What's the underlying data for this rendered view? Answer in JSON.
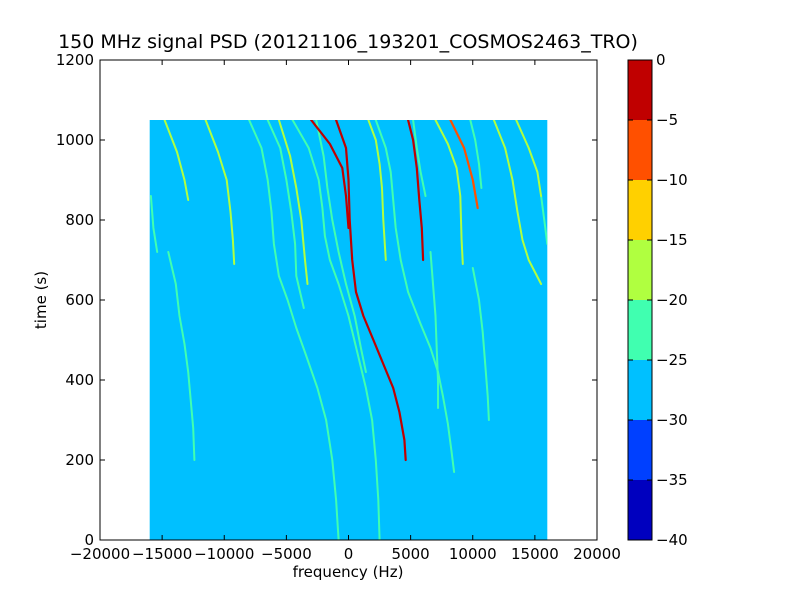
{
  "chart_data": {
    "type": "heatmap",
    "title": "150 MHz signal PSD (20121106_193201_COSMOS2463_TRO)",
    "xlabel": "frequency (Hz)",
    "ylabel": "time (s)",
    "xlim": [
      -20000,
      20000
    ],
    "ylim": [
      0,
      1200
    ],
    "x_ticks": [
      -20000,
      -15000,
      -10000,
      -5000,
      0,
      5000,
      10000,
      15000,
      20000
    ],
    "x_tick_labels": [
      "−20000",
      "−15000",
      "−10000",
      "−5000",
      "0",
      "5000",
      "10000",
      "15000",
      "20000"
    ],
    "y_ticks": [
      0,
      200,
      400,
      600,
      800,
      1000,
      1200
    ],
    "y_tick_labels": [
      "0",
      "200",
      "400",
      "600",
      "800",
      "1000",
      "1200"
    ],
    "data_extent": {
      "x": [
        -16000,
        16000
      ],
      "y": [
        0,
        1050
      ]
    },
    "background_level": -27.5,
    "colorbar": {
      "levels": [
        -40,
        -35,
        -30,
        -25,
        -20,
        -15,
        -10,
        -5,
        0
      ],
      "tick_labels": [
        "−40",
        "−35",
        "−30",
        "−25",
        "−20",
        "−15",
        "−10",
        "−5",
        "0"
      ],
      "colors": [
        "#0000bf",
        "#0040ff",
        "#00c0ff",
        "#40ffb0",
        "#b0ff40",
        "#ffd000",
        "#ff5000",
        "#c00000"
      ]
    },
    "tracks": [
      {
        "level": -2.5,
        "points": [
          [
            -1000,
            1050
          ],
          [
            -200,
            980
          ],
          [
            0,
            900
          ],
          [
            100,
            800
          ],
          [
            300,
            700
          ],
          [
            600,
            620
          ],
          [
            1200,
            560
          ],
          [
            2000,
            500
          ],
          [
            2800,
            440
          ],
          [
            3600,
            380
          ],
          [
            4100,
            320
          ],
          [
            4500,
            250
          ],
          [
            4600,
            200
          ]
        ]
      },
      {
        "level": -2.5,
        "points": [
          [
            -3000,
            1050
          ],
          [
            -1500,
            990
          ],
          [
            -500,
            930
          ],
          [
            -200,
            860
          ],
          [
            0,
            780
          ]
        ]
      },
      {
        "level": -2.5,
        "points": [
          [
            4800,
            1050
          ],
          [
            5200,
            1000
          ],
          [
            5500,
            930
          ],
          [
            5700,
            850
          ],
          [
            5900,
            780
          ],
          [
            6000,
            700
          ]
        ]
      },
      {
        "level": -7.5,
        "points": [
          [
            8200,
            1050
          ],
          [
            9300,
            980
          ],
          [
            10000,
            900
          ],
          [
            10400,
            830
          ]
        ]
      },
      {
        "level": -17.5,
        "points": [
          [
            1600,
            1050
          ],
          [
            2200,
            1000
          ],
          [
            2500,
            940
          ],
          [
            2700,
            880
          ],
          [
            2800,
            800
          ],
          [
            3000,
            700
          ]
        ]
      },
      {
        "level": -17.5,
        "points": [
          [
            7000,
            1050
          ],
          [
            8000,
            990
          ],
          [
            8700,
            930
          ],
          [
            9000,
            860
          ],
          [
            9100,
            750
          ],
          [
            9200,
            690
          ]
        ]
      },
      {
        "level": -17.5,
        "points": [
          [
            -11500,
            1050
          ],
          [
            -10500,
            970
          ],
          [
            -9800,
            900
          ],
          [
            -9500,
            820
          ],
          [
            -9300,
            750
          ],
          [
            -9200,
            690
          ]
        ]
      },
      {
        "level": -17.5,
        "points": [
          [
            -14800,
            1050
          ],
          [
            -13800,
            970
          ],
          [
            -13200,
            900
          ],
          [
            -12900,
            850
          ]
        ]
      },
      {
        "level": -17.5,
        "points": [
          [
            13500,
            1050
          ],
          [
            14500,
            980
          ],
          [
            15200,
            920
          ],
          [
            15500,
            860
          ]
        ]
      },
      {
        "level": -17.5,
        "points": [
          [
            -5600,
            1050
          ],
          [
            -4700,
            960
          ],
          [
            -4200,
            880
          ],
          [
            -3800,
            800
          ],
          [
            -3500,
            700
          ],
          [
            -3300,
            640
          ]
        ]
      },
      {
        "level": -17.5,
        "points": [
          [
            11700,
            1050
          ],
          [
            12600,
            980
          ],
          [
            13200,
            900
          ],
          [
            13600,
            820
          ],
          [
            14000,
            750
          ],
          [
            14500,
            700
          ],
          [
            15500,
            640
          ]
        ]
      },
      {
        "level": -22.5,
        "points": [
          [
            -8000,
            1050
          ],
          [
            -7000,
            980
          ],
          [
            -6500,
            900
          ],
          [
            -6200,
            820
          ],
          [
            -6000,
            740
          ],
          [
            -5600,
            660
          ],
          [
            -4900,
            600
          ],
          [
            -4200,
            530
          ],
          [
            -3400,
            460
          ],
          [
            -2500,
            380
          ],
          [
            -1800,
            300
          ],
          [
            -1300,
            200
          ],
          [
            -1000,
            100
          ],
          [
            -800,
            0
          ]
        ]
      },
      {
        "level": -22.5,
        "points": [
          [
            -4500,
            1050
          ],
          [
            -3200,
            980
          ],
          [
            -2400,
            900
          ],
          [
            -2100,
            830
          ],
          [
            -1900,
            760
          ],
          [
            -1500,
            700
          ],
          [
            -800,
            640
          ],
          [
            0,
            560
          ],
          [
            700,
            470
          ],
          [
            1400,
            380
          ],
          [
            1900,
            300
          ],
          [
            2200,
            200
          ],
          [
            2400,
            100
          ],
          [
            2500,
            0
          ]
        ]
      },
      {
        "level": -22.5,
        "points": [
          [
            -2600,
            1050
          ],
          [
            -2000,
            960
          ],
          [
            -1700,
            880
          ],
          [
            -1300,
            800
          ],
          [
            -800,
            720
          ],
          [
            -200,
            640
          ],
          [
            500,
            560
          ],
          [
            1000,
            480
          ],
          [
            1400,
            420
          ]
        ]
      },
      {
        "level": -22.5,
        "points": [
          [
            9800,
            1050
          ],
          [
            10200,
            1000
          ],
          [
            10500,
            940
          ],
          [
            10700,
            880
          ]
        ]
      },
      {
        "level": -22.5,
        "points": [
          [
            5200,
            1050
          ],
          [
            5500,
            980
          ],
          [
            5800,
            920
          ],
          [
            6200,
            860
          ]
        ]
      },
      {
        "level": -22.5,
        "points": [
          [
            -6500,
            1050
          ],
          [
            -5500,
            980
          ],
          [
            -5000,
            900
          ],
          [
            -4600,
            820
          ],
          [
            -4300,
            740
          ],
          [
            -4200,
            660
          ],
          [
            -3600,
            580
          ]
        ]
      },
      {
        "level": -22.5,
        "points": [
          [
            -15900,
            860
          ],
          [
            -15700,
            780
          ],
          [
            -15400,
            720
          ]
        ]
      },
      {
        "level": -22.5,
        "points": [
          [
            2200,
            1050
          ],
          [
            3000,
            980
          ],
          [
            3400,
            920
          ],
          [
            3600,
            850
          ],
          [
            3800,
            780
          ],
          [
            4200,
            700
          ],
          [
            4800,
            620
          ],
          [
            5800,
            540
          ],
          [
            6600,
            480
          ],
          [
            7200,
            420
          ],
          [
            7600,
            360
          ],
          [
            8000,
            290
          ],
          [
            8300,
            220
          ],
          [
            8500,
            170
          ]
        ]
      },
      {
        "level": -22.5,
        "points": [
          [
            15500,
            860
          ],
          [
            15800,
            790
          ],
          [
            16000,
            740
          ]
        ]
      },
      {
        "level": -22.5,
        "points": [
          [
            -14500,
            720
          ],
          [
            -13900,
            640
          ],
          [
            -13600,
            560
          ],
          [
            -13200,
            490
          ],
          [
            -12900,
            420
          ],
          [
            -12700,
            350
          ],
          [
            -12500,
            280
          ],
          [
            -12400,
            200
          ]
        ]
      },
      {
        "level": -22.5,
        "points": [
          [
            10000,
            680
          ],
          [
            10500,
            600
          ],
          [
            10800,
            520
          ],
          [
            11000,
            440
          ],
          [
            11200,
            360
          ],
          [
            11300,
            300
          ]
        ]
      },
      {
        "level": -22.5,
        "points": [
          [
            6600,
            720
          ],
          [
            6800,
            640
          ],
          [
            7000,
            560
          ],
          [
            7100,
            480
          ],
          [
            7200,
            400
          ],
          [
            7200,
            330
          ]
        ]
      }
    ]
  }
}
